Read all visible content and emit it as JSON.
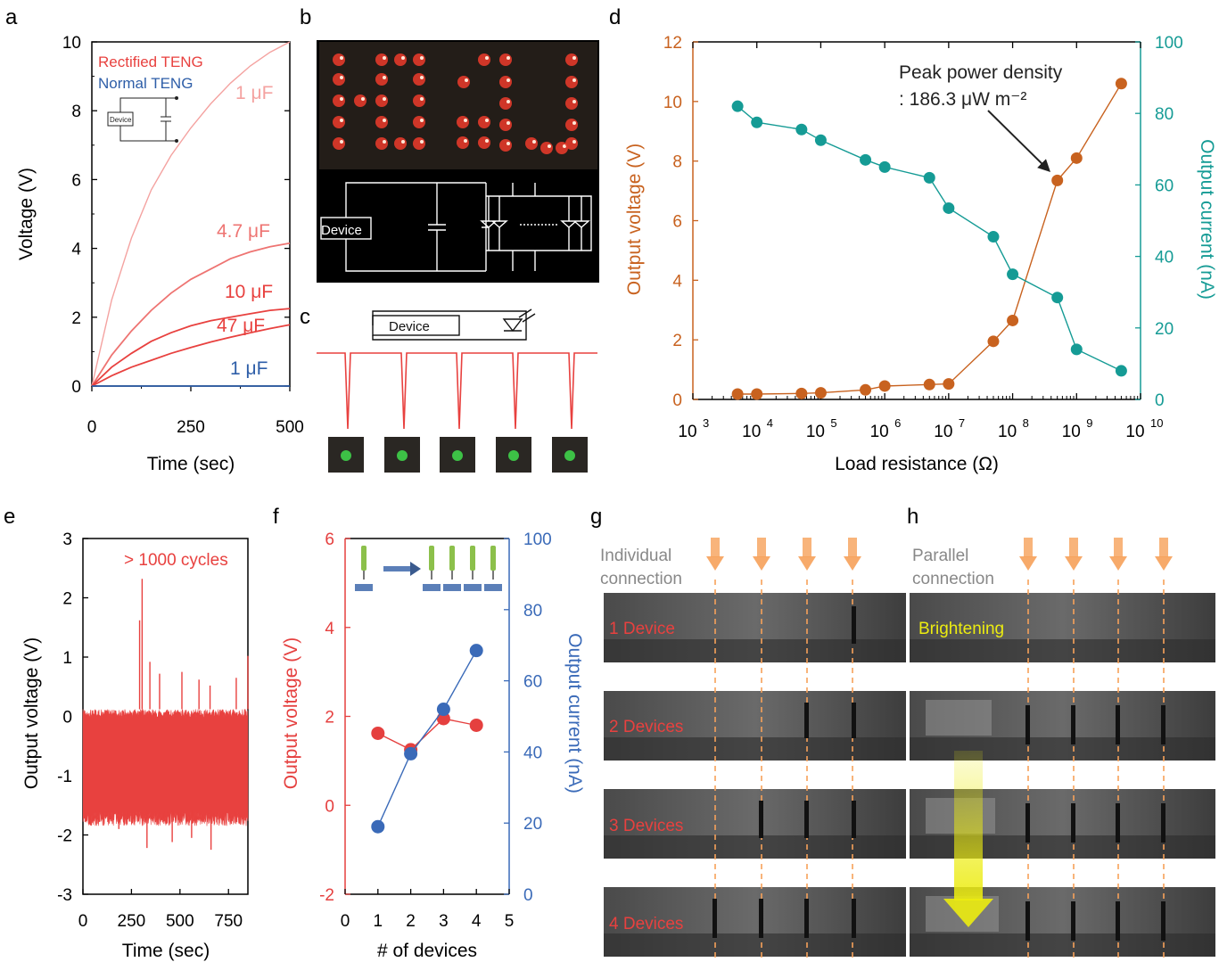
{
  "colors": {
    "rectified": "#e8413f",
    "rectified_light": "#f4a2a0",
    "rectified_mid": "#ee7472",
    "normal": "#2e5ea8",
    "voltage_d": "#c8621f",
    "current_d": "#159b95",
    "voltage_f": "#e5403f",
    "current_f": "#3a6ab8",
    "arrow_orange": "#f6a15a",
    "highlight": "#ecec10"
  },
  "panels": {
    "a": {
      "letter": "a",
      "legend": [
        "Rectified TENG",
        "Normal TENG"
      ],
      "curve_labels": [
        "1 μF",
        "4.7 μF",
        "10 μF",
        "47 μF",
        "1 μF"
      ],
      "inset_device": "Device"
    },
    "b": {
      "letter": "b",
      "device_label": "Device"
    },
    "c": {
      "letter": "c",
      "device_label": "Device"
    },
    "d": {
      "letter": "d",
      "annotation_line1": "Peak power density",
      "annotation_line2": ": 186.3 μW m⁻²"
    },
    "e": {
      "letter": "e",
      "annotation": "> 1000 cycles"
    },
    "f": {
      "letter": "f"
    },
    "g": {
      "letter": "g",
      "title_line1": "Individual",
      "title_line2": "connection",
      "rows": [
        "1 Device",
        "2 Devices",
        "3 Devices",
        "4 Devices"
      ]
    },
    "h": {
      "letter": "h",
      "title_line1": "Parallel",
      "title_line2": "connection",
      "label": "Brightening"
    }
  },
  "chart_data": [
    {
      "id": "a",
      "type": "line",
      "xlabel": "Time (sec)",
      "ylabel": "Voltage (V)",
      "xlim": [
        0,
        500
      ],
      "ylim": [
        0,
        10
      ],
      "xticks": [
        0,
        250,
        500
      ],
      "yticks": [
        0,
        2,
        4,
        6,
        8,
        10
      ],
      "series": [
        {
          "name": "1 μF",
          "x": [
            0,
            50,
            100,
            150,
            200,
            250,
            300,
            350,
            400,
            450,
            500
          ],
          "y": [
            0,
            2.5,
            4.3,
            5.7,
            6.7,
            7.5,
            8.2,
            8.8,
            9.3,
            9.7,
            10.0
          ]
        },
        {
          "name": "4.7 μF",
          "x": [
            0,
            50,
            100,
            150,
            200,
            250,
            300,
            350,
            400,
            450,
            500
          ],
          "y": [
            0,
            0.9,
            1.6,
            2.2,
            2.7,
            3.1,
            3.4,
            3.7,
            3.9,
            4.05,
            4.15
          ]
        },
        {
          "name": "10 μF",
          "x": [
            0,
            50,
            100,
            150,
            200,
            250,
            300,
            350,
            400,
            450,
            500
          ],
          "y": [
            0,
            0.55,
            0.95,
            1.3,
            1.55,
            1.75,
            1.9,
            2.0,
            2.1,
            2.2,
            2.25
          ]
        },
        {
          "name": "47 μF",
          "x": [
            0,
            50,
            100,
            150,
            200,
            250,
            300,
            350,
            400,
            450,
            500
          ],
          "y": [
            0,
            0.3,
            0.55,
            0.75,
            0.95,
            1.12,
            1.28,
            1.42,
            1.55,
            1.67,
            1.78
          ]
        },
        {
          "name": "1 μF",
          "x": [
            0,
            500
          ],
          "y": [
            0,
            0
          ]
        }
      ]
    },
    {
      "id": "d",
      "type": "line",
      "xlabel": "Load resistance (Ω)",
      "ylabel": "Output voltage (V)",
      "ylabel_right": "Output current (nA)",
      "x_scale": "log",
      "xlim": [
        1000,
        10000000000
      ],
      "ylim": [
        0,
        12
      ],
      "ylim_right": [
        0,
        100
      ],
      "xtick_exponents": [
        3,
        4,
        5,
        6,
        7,
        8,
        9,
        10
      ],
      "yticks": [
        0,
        2,
        4,
        6,
        8,
        10,
        12
      ],
      "yticks_right": [
        0,
        20,
        40,
        60,
        80,
        100
      ],
      "series": [
        {
          "name": "Output voltage (V)",
          "axis": "left",
          "x": [
            5000,
            10000,
            50000,
            100000,
            500000,
            1000000,
            5000000,
            10000000,
            50000000,
            100000000,
            500000000,
            1000000000,
            5000000000
          ],
          "y": [
            0.18,
            0.18,
            0.2,
            0.22,
            0.32,
            0.45,
            0.5,
            0.52,
            1.95,
            2.65,
            7.35,
            8.1,
            10.6
          ]
        },
        {
          "name": "Output current (nA)",
          "axis": "right",
          "x": [
            5000,
            10000,
            50000,
            100000,
            500000,
            1000000,
            5000000,
            10000000,
            50000000,
            100000000,
            500000000,
            1000000000,
            5000000000
          ],
          "y": [
            82,
            77.5,
            75.5,
            72.5,
            67,
            65,
            62,
            53.5,
            45.5,
            35,
            28.5,
            14,
            8
          ]
        }
      ]
    },
    {
      "id": "e",
      "type": "line",
      "xlabel": "Time (sec)",
      "ylabel": "Output voltage (V)",
      "xlim": [
        0,
        850
      ],
      "ylim": [
        -3,
        3
      ],
      "xticks": [
        0,
        250,
        500,
        750
      ],
      "yticks": [
        -3,
        -2,
        -1,
        0,
        1,
        2,
        3
      ],
      "series": [
        {
          "name": "Output voltage",
          "x": [
            0,
            850
          ],
          "y_upper_base": 0.12,
          "y_lower_base": -1.6,
          "spikes": [
            {
              "x": 292,
              "y": 1.62
            },
            {
              "x": 305,
              "y": 2.32
            },
            {
              "x": 345,
              "y": 0.92
            },
            {
              "x": 395,
              "y": 0.72
            },
            {
              "x": 510,
              "y": 0.75
            },
            {
              "x": 598,
              "y": 0.62
            },
            {
              "x": 655,
              "y": 0.52
            },
            {
              "x": 790,
              "y": 0.65
            },
            {
              "x": 850,
              "y": 1.02
            }
          ],
          "dips": [
            {
              "x": 330,
              "y": -2.22
            },
            {
              "x": 460,
              "y": -2.12
            },
            {
              "x": 660,
              "y": -2.25
            },
            {
              "x": 560,
              "y": -2.05
            },
            {
              "x": 185,
              "y": -1.9
            }
          ]
        }
      ]
    },
    {
      "id": "f",
      "type": "line",
      "xlabel": "# of devices",
      "ylabel": "Output voltage (V)",
      "ylabel_right": "Output current (nA)",
      "xlim": [
        0,
        5
      ],
      "ylim": [
        -2,
        6
      ],
      "ylim_right": [
        0,
        100
      ],
      "xticks": [
        0,
        1,
        2,
        3,
        4,
        5
      ],
      "yticks": [
        -2,
        0,
        2,
        4,
        6
      ],
      "yticks_right": [
        0,
        20,
        40,
        60,
        80,
        100
      ],
      "series": [
        {
          "name": "Output voltage (V)",
          "axis": "left",
          "x": [
            1,
            2,
            3,
            4
          ],
          "y": [
            1.62,
            1.25,
            1.95,
            1.8
          ]
        },
        {
          "name": "Output current (nA)",
          "axis": "right",
          "x": [
            1,
            2,
            3,
            4
          ],
          "y": [
            19,
            39.5,
            52,
            68.5
          ]
        }
      ]
    }
  ]
}
